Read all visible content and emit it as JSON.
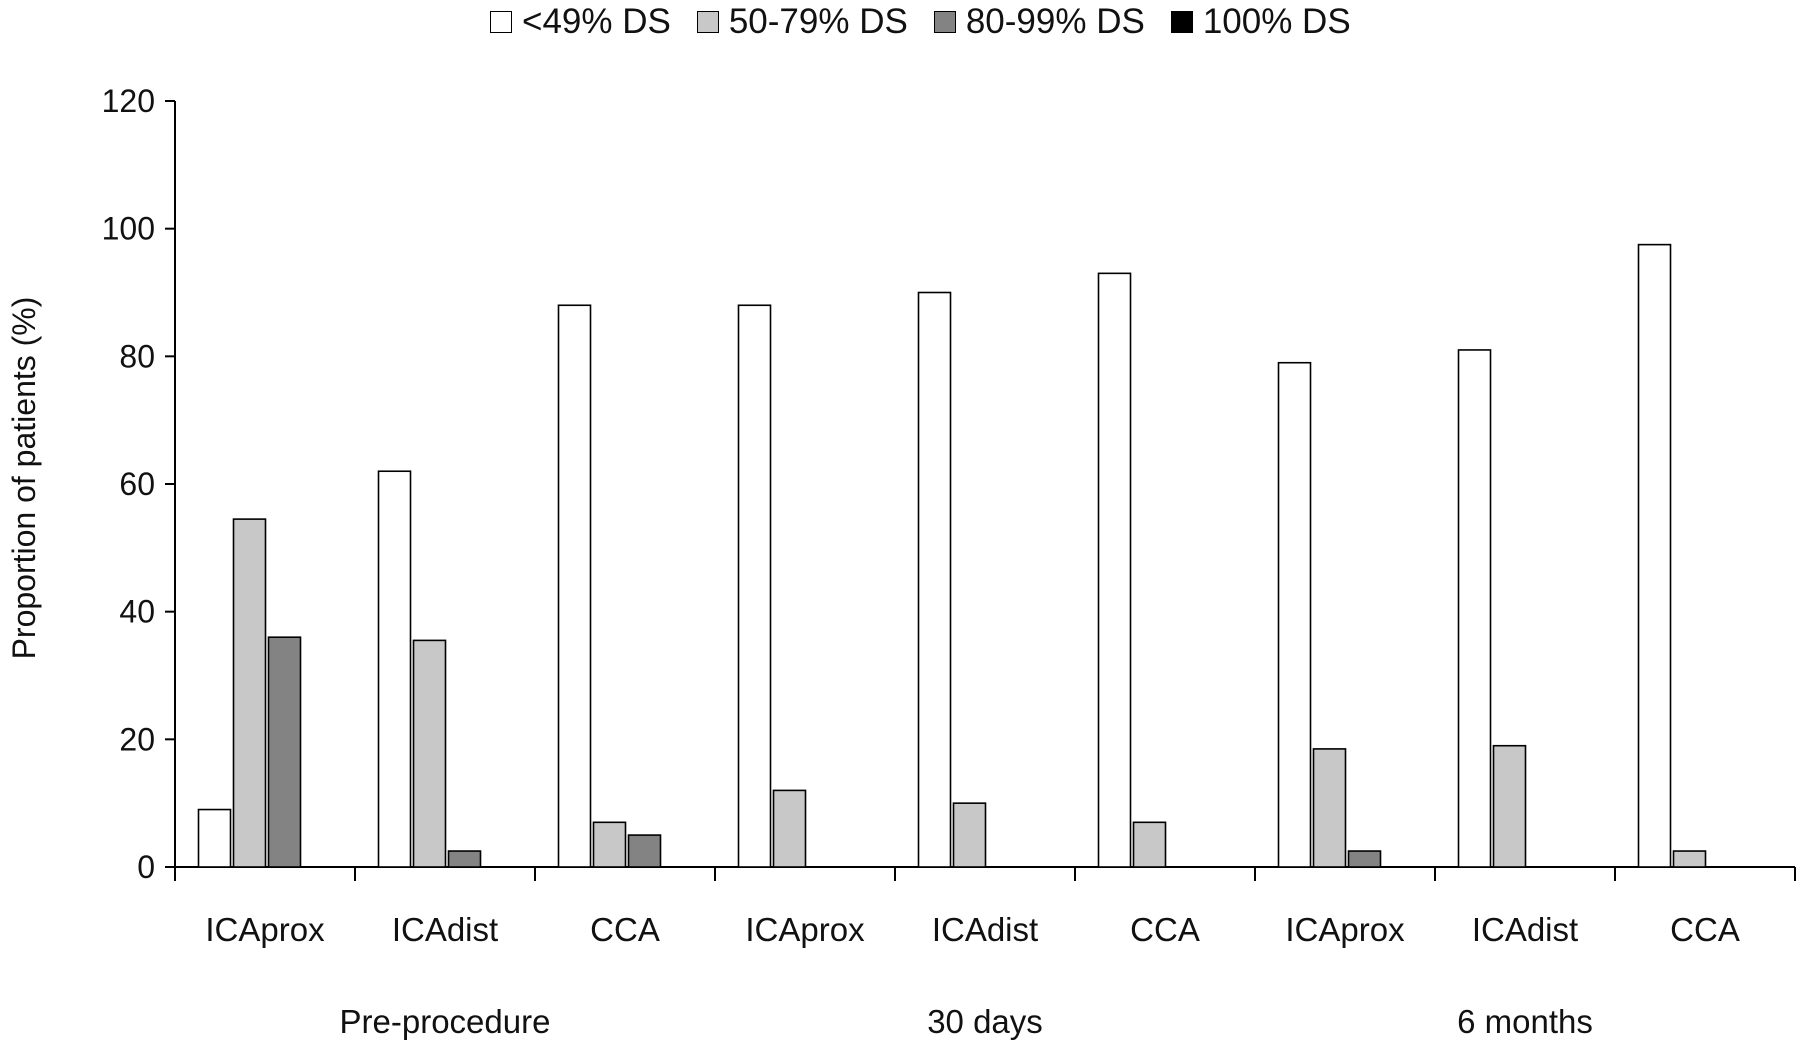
{
  "chart_data": {
    "type": "bar",
    "ylabel": "Proportion of patients (%)",
    "xlabel": "",
    "ylim": [
      0,
      120
    ],
    "yticks": [
      0,
      20,
      40,
      60,
      80,
      100,
      120
    ],
    "grid": false,
    "legend_position": "top",
    "categories": [
      "ICAprox",
      "ICAdist",
      "CCA",
      "ICAprox",
      "ICAdist",
      "CCA",
      "ICAprox",
      "ICAdist",
      "CCA"
    ],
    "groups": [
      {
        "label": "Pre-procedure",
        "span": [
          0,
          2
        ]
      },
      {
        "label": "30 days",
        "span": [
          3,
          5
        ]
      },
      {
        "label": "6 months",
        "span": [
          6,
          8
        ]
      }
    ],
    "series": [
      {
        "name": "<49% DS",
        "color": "#ffffff",
        "values": [
          9,
          62,
          88,
          88,
          90,
          93,
          79,
          81,
          97.5
        ]
      },
      {
        "name": "50-79% DS",
        "color": "#c8c8c8",
        "values": [
          54.5,
          35.5,
          7,
          12,
          10,
          7,
          18.5,
          19,
          2.5
        ]
      },
      {
        "name": "80-99% DS",
        "color": "#838383",
        "values": [
          36,
          2.5,
          5,
          0,
          0,
          0,
          2.5,
          0,
          0
        ]
      },
      {
        "name": "100% DS",
        "color": "#000000",
        "values": [
          0,
          0,
          0,
          0,
          0,
          0,
          0,
          0,
          0
        ]
      }
    ]
  }
}
